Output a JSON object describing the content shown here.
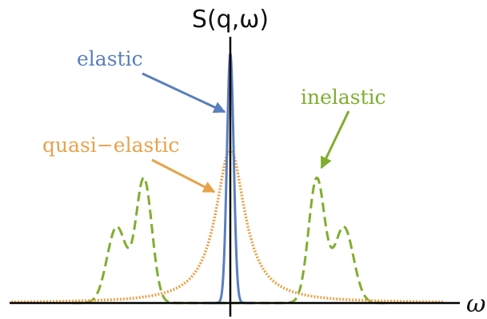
{
  "title": "S(q,ω)",
  "x_axis_label": "ω",
  "colors": {
    "elastic": "#5a7fbf",
    "quasi_elastic": "#e8a24a",
    "inelastic": "#7fae2f",
    "axis": "#000000"
  },
  "labels": {
    "elastic": "elastic",
    "quasi_elastic": "quasi−elastic",
    "inelastic": "inelastic"
  },
  "line_styles": {
    "elastic": "solid",
    "quasi_elastic": "dotted",
    "inelastic": "dashed"
  }
}
